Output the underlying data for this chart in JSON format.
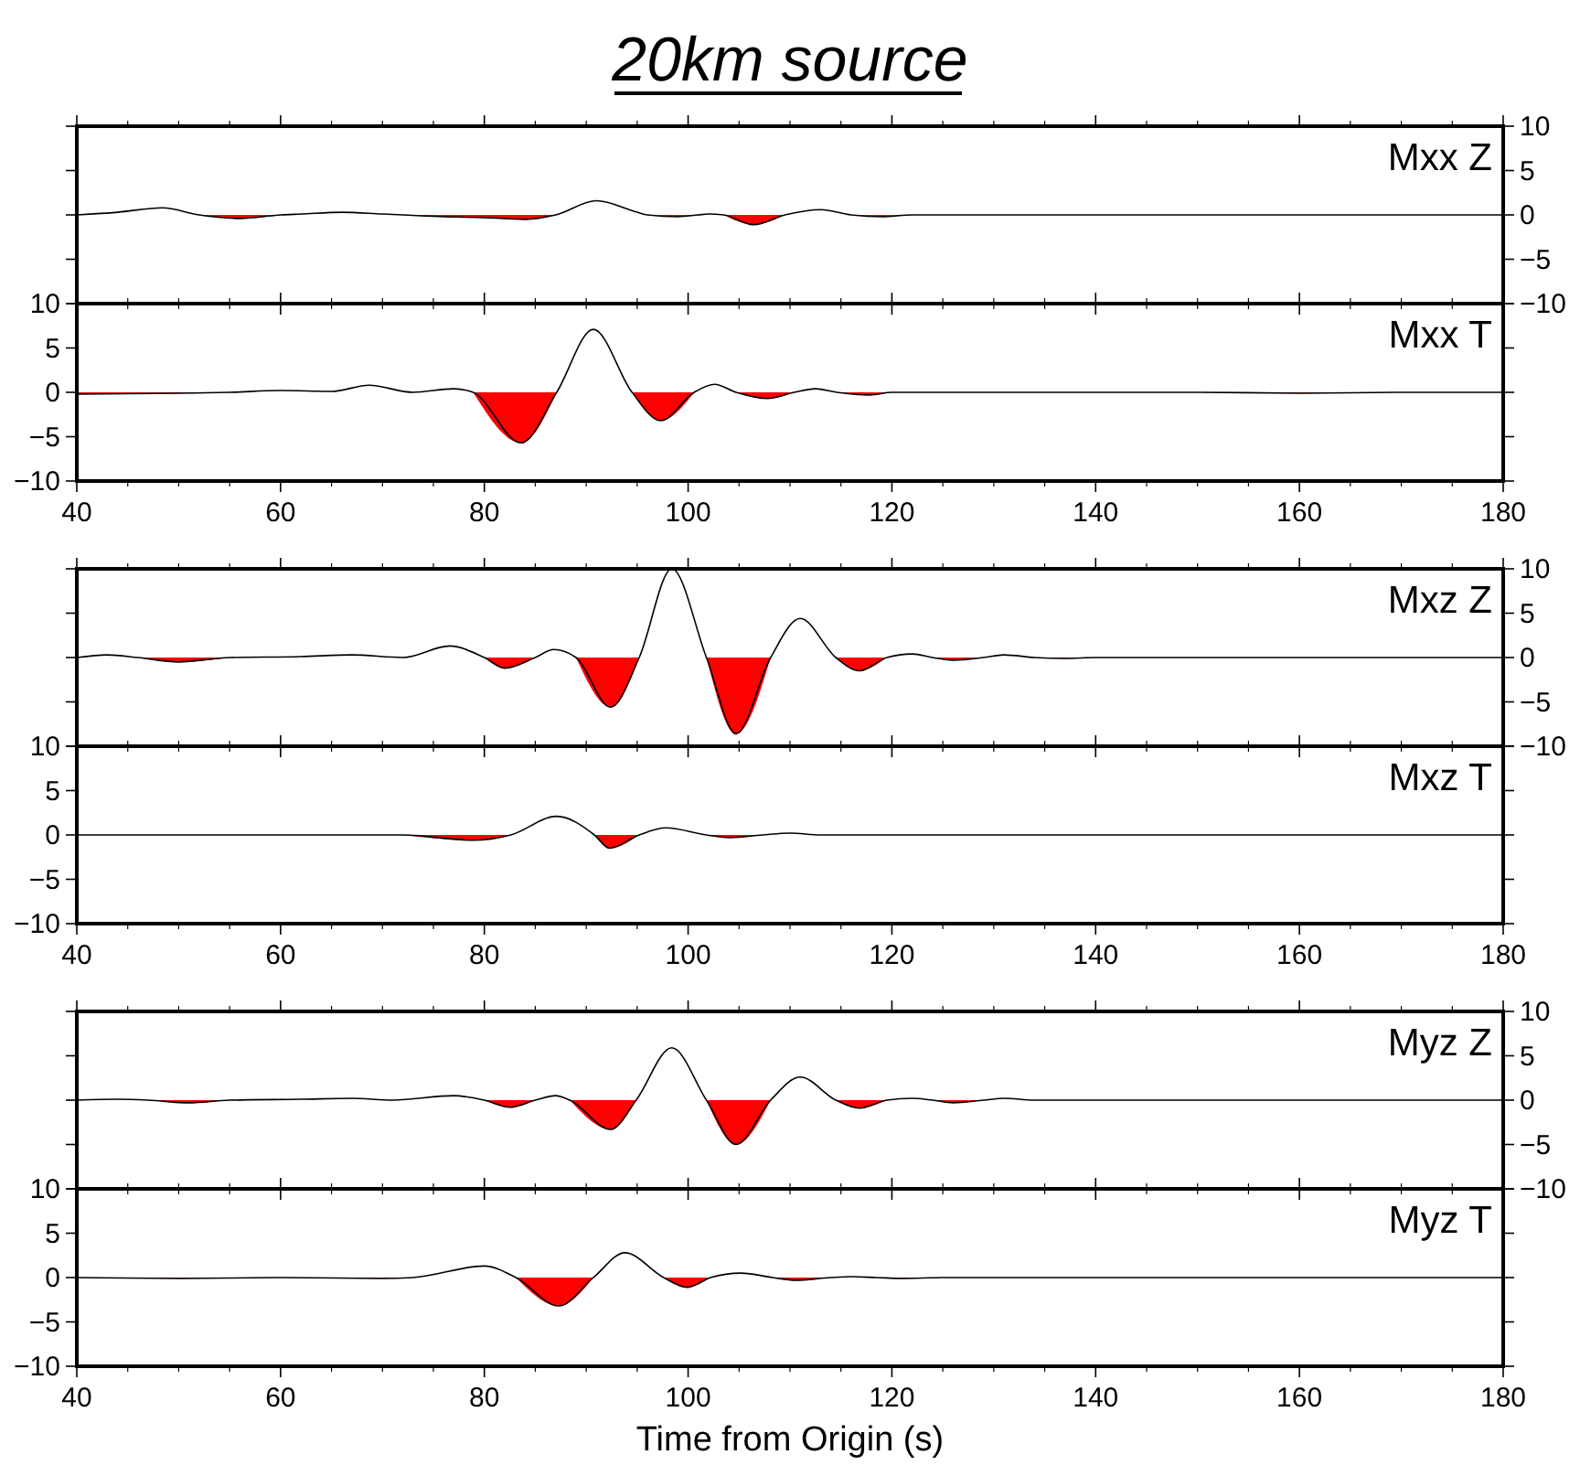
{
  "chart_data": [
    {
      "type": "line",
      "title": "20km source",
      "annotations": [
        "Mxx Z"
      ],
      "tick_labels": "y",
      "xlim": [
        40,
        180
      ],
      "xticks": [
        40,
        60,
        80,
        100,
        120,
        140,
        160,
        180
      ],
      "ylim": [
        -10,
        10
      ],
      "yticks": [
        -10,
        -5,
        0,
        5,
        10
      ],
      "x": [
        40,
        44,
        48.4,
        52,
        56,
        60,
        62,
        66,
        70,
        72,
        76,
        80,
        84,
        87,
        91,
        95,
        96,
        99,
        101,
        102,
        103.5,
        106.4,
        109.5,
        113,
        116,
        119,
        122,
        130,
        140,
        150,
        160,
        170,
        180
      ],
      "series": [
        {
          "color": "#000000",
          "values": [
            0,
            0.3,
            0.8,
            0,
            -0.4,
            0,
            0.1,
            0.3,
            0.1,
            0,
            -0.2,
            -0.3,
            -0.5,
            0,
            1.6,
            0.3,
            0,
            -0.2,
            0,
            0.1,
            0,
            -1.1,
            0,
            0.6,
            0,
            -0.2,
            0,
            0,
            0,
            0,
            0,
            0,
            0
          ]
        },
        {
          "type": "area",
          "color": "#ff0000",
          "values": [
            null,
            null,
            null,
            0,
            -0.4,
            0,
            null,
            null,
            null,
            0,
            -0.2,
            -0.3,
            -0.5,
            0,
            null,
            null,
            0,
            -0.2,
            0,
            null,
            0,
            -1.1,
            0,
            null,
            0,
            -0.2,
            0,
            null,
            null,
            null,
            null,
            null,
            null
          ]
        }
      ]
    },
    {
      "type": "line",
      "annotations": [
        "Mxx T"
      ],
      "xlim": [
        40,
        180
      ],
      "xticks": [
        40,
        60,
        80,
        100,
        120,
        140,
        160,
        180
      ],
      "ylim": [
        -10,
        10
      ],
      "yticks": [
        -10,
        -5,
        0,
        5,
        10
      ],
      "x": [
        40,
        50,
        55,
        60,
        65,
        68.7,
        73,
        77,
        78.9,
        83.6,
        87.1,
        90.7,
        94.5,
        97.3,
        100.6,
        102.6,
        104.7,
        107.8,
        110.4,
        112.5,
        114.6,
        117.8,
        120,
        130,
        140,
        150,
        160,
        170,
        180
      ],
      "series": [
        {
          "color": "#000000",
          "values": [
            -0.2,
            -0.1,
            0,
            0.2,
            0.1,
            0.8,
            0,
            0.4,
            0,
            -5.7,
            0,
            7.1,
            0,
            -3.2,
            0,
            0.9,
            0,
            -0.7,
            0,
            0.4,
            0,
            -0.3,
            0,
            0,
            0,
            0,
            -0.1,
            0,
            0
          ]
        },
        {
          "type": "area",
          "color": "#ff0000",
          "values": [
            -0.2,
            -0.1,
            0,
            null,
            null,
            null,
            null,
            null,
            0,
            -5.7,
            0,
            null,
            0,
            -3.2,
            0,
            null,
            0,
            -0.7,
            0,
            null,
            0,
            -0.3,
            0,
            null,
            null,
            0,
            -0.1,
            0,
            null
          ]
        }
      ]
    },
    {
      "type": "line",
      "annotations": [
        "Mxz Z"
      ],
      "tick_labels": "y",
      "xlim": [
        40,
        180
      ],
      "xticks": [
        40,
        60,
        80,
        100,
        120,
        140,
        160,
        180
      ],
      "ylim": [
        -10,
        10
      ],
      "yticks": [
        -10,
        -5,
        0,
        5,
        10
      ],
      "x": [
        40,
        43,
        46,
        50,
        55,
        62,
        67,
        72,
        76.6,
        80,
        82,
        85,
        86.8,
        89,
        92.4,
        95.2,
        98.4,
        101.8,
        104.7,
        108.1,
        111,
        114.5,
        116.8,
        119.5,
        122,
        124,
        126,
        129,
        131,
        134,
        137,
        140,
        150,
        160,
        170,
        180
      ],
      "series": [
        {
          "color": "#000000",
          "values": [
            0,
            0.3,
            0,
            -0.5,
            0,
            0.1,
            0.3,
            0,
            1.3,
            0,
            -1.2,
            0,
            0.9,
            0,
            -5.6,
            0,
            10,
            0,
            -8.6,
            0,
            4.4,
            0,
            -1.5,
            0,
            0.4,
            0,
            -0.3,
            0,
            0.3,
            0,
            -0.1,
            0,
            0,
            0,
            0,
            0
          ]
        },
        {
          "type": "area",
          "color": "#ff0000",
          "values": [
            null,
            null,
            0,
            -0.5,
            0,
            null,
            null,
            null,
            null,
            0,
            -1.2,
            0,
            null,
            0,
            -5.6,
            0,
            null,
            0,
            -8.6,
            0,
            null,
            0,
            -1.5,
            0,
            null,
            0,
            -0.3,
            0,
            null,
            0,
            -0.1,
            0,
            null,
            null,
            null,
            null
          ]
        }
      ]
    },
    {
      "type": "line",
      "annotations": [
        "Mxz T"
      ],
      "xlim": [
        40,
        180
      ],
      "xticks": [
        40,
        60,
        80,
        100,
        120,
        140,
        160,
        180
      ],
      "ylim": [
        -10,
        10
      ],
      "yticks": [
        -10,
        -5,
        0,
        5,
        10
      ],
      "x": [
        40,
        50,
        60,
        72,
        78.9,
        82.6,
        87.1,
        90.8,
        92.3,
        95.2,
        97.8,
        101.8,
        104.1,
        107.3,
        110,
        113,
        120,
        130,
        140,
        150,
        160,
        170,
        180
      ],
      "series": [
        {
          "color": "#000000",
          "values": [
            0,
            0,
            0,
            0,
            -0.6,
            0,
            2.1,
            0,
            -1.5,
            0,
            0.8,
            0,
            -0.3,
            0,
            0.2,
            0,
            0,
            0,
            0,
            0,
            0,
            0,
            0
          ]
        },
        {
          "type": "area",
          "color": "#ff0000",
          "values": [
            null,
            null,
            null,
            0,
            -0.6,
            0,
            null,
            0,
            -1.5,
            0,
            null,
            0,
            -0.3,
            0,
            null,
            null,
            null,
            null,
            null,
            null,
            null,
            null,
            null
          ]
        }
      ]
    },
    {
      "type": "line",
      "annotations": [
        "Myz Z"
      ],
      "tick_labels": "y",
      "xlim": [
        40,
        180
      ],
      "xticks": [
        40,
        60,
        80,
        100,
        120,
        140,
        160,
        180
      ],
      "ylim": [
        -10,
        10
      ],
      "yticks": [
        -10,
        -5,
        0,
        5,
        10
      ],
      "x": [
        40,
        44,
        47,
        51,
        55,
        62,
        67,
        71,
        77,
        80,
        82.5,
        85,
        87,
        88.4,
        92.4,
        94.9,
        98.4,
        101.8,
        104.7,
        108.1,
        111,
        114.5,
        116.8,
        119.5,
        122,
        124,
        126,
        129,
        131,
        134,
        140,
        150,
        160,
        170,
        180
      ],
      "series": [
        {
          "color": "#000000",
          "values": [
            0,
            0.1,
            0,
            -0.3,
            0,
            0.1,
            0.2,
            0,
            0.5,
            0,
            -0.8,
            0,
            0.5,
            0,
            -3.3,
            0,
            5.9,
            0,
            -5,
            0,
            2.6,
            0,
            -0.9,
            0,
            0.2,
            0,
            -0.3,
            0,
            0.2,
            0,
            0,
            0,
            0,
            0,
            0
          ]
        },
        {
          "type": "area",
          "color": "#ff0000",
          "values": [
            null,
            null,
            0,
            -0.3,
            0,
            null,
            null,
            null,
            null,
            0,
            -0.8,
            0,
            null,
            0,
            -3.3,
            0,
            null,
            0,
            -5,
            0,
            null,
            0,
            -0.9,
            0,
            null,
            0,
            -0.3,
            0,
            null,
            null,
            null,
            null,
            null,
            null,
            null
          ]
        }
      ]
    },
    {
      "type": "line",
      "annotations": [
        "Myz T"
      ],
      "xlabel": "Time from Origin (s)",
      "xlim": [
        40,
        180
      ],
      "xticks": [
        40,
        60,
        80,
        100,
        120,
        140,
        160,
        180
      ],
      "ylim": [
        -10,
        10
      ],
      "yticks": [
        -10,
        -5,
        0,
        5,
        10
      ],
      "x": [
        40,
        50,
        60,
        70,
        73,
        80,
        83.1,
        87.3,
        90.7,
        93.8,
        97.6,
        99.9,
        102.2,
        105.2,
        108.3,
        110.5,
        114,
        116,
        118.5,
        121,
        125,
        140,
        160,
        180
      ],
      "series": [
        {
          "color": "#000000",
          "values": [
            0,
            -0.1,
            0,
            -0.1,
            0,
            1.3,
            0,
            -3.2,
            0,
            2.8,
            0,
            -1.1,
            0,
            0.5,
            0,
            -0.3,
            0,
            0.1,
            0,
            -0.1,
            0,
            0,
            0,
            0
          ]
        },
        {
          "type": "area",
          "color": "#ff0000",
          "values": [
            0,
            -0.1,
            0,
            -0.1,
            0,
            null,
            0,
            -3.2,
            0,
            null,
            0,
            -1.1,
            0,
            null,
            0,
            -0.3,
            0,
            null,
            0,
            -0.1,
            0,
            null,
            null,
            null
          ]
        }
      ]
    }
  ]
}
